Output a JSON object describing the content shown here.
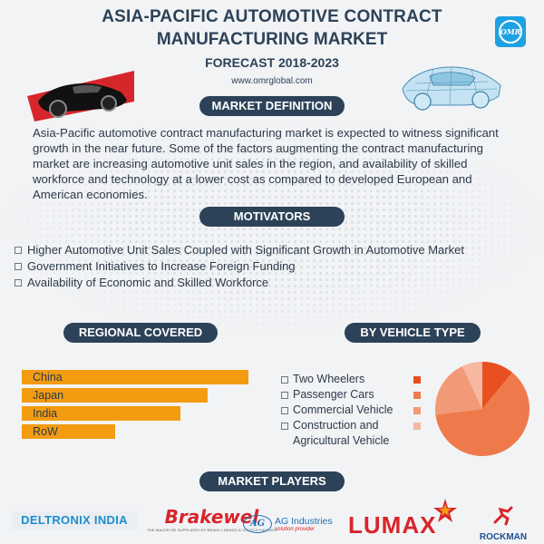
{
  "header": {
    "title_line1": "ASIA-PACIFIC AUTOMOTIVE CONTRACT",
    "title_line2": "MANUFACTURING MARKET",
    "subtitle": "FORECAST 2018-2023",
    "website": "www.omrglobal.com",
    "logo_text": "OMR"
  },
  "market_definition": {
    "heading": "MARKET DEFINITION",
    "text": "Asia-Pacific automotive contract manufacturing market is expected to witness significant growth in the near future. Some of the factors augmenting the contract manufacturing market are increasing automotive unit sales in the region, and availability of skilled workforce and technology at a lower cost as compared to developed European and American economies."
  },
  "motivators": {
    "heading": "MOTIVATORS",
    "items": [
      "Higher Automotive Unit Sales Coupled with Significant Growth in Automotive Market",
      "Government Initiatives to Increase Foreign Funding",
      "Availability of Economic and Skilled Workforce"
    ]
  },
  "regional": {
    "heading": "REGIONAL COVERED",
    "items": [
      {
        "label": "China",
        "value": 100
      },
      {
        "label": "Japan",
        "value": 82
      },
      {
        "label": "India",
        "value": 70
      },
      {
        "label": "RoW",
        "value": 41
      }
    ]
  },
  "vehicle_type": {
    "heading": "BY VEHICLE TYPE",
    "items": [
      {
        "label": "Two Wheelers",
        "color": "#e8501f",
        "share": 11
      },
      {
        "label": "Passenger Cars",
        "color": "#ee7a4c",
        "share": 62
      },
      {
        "label": "Commercial Vehicle",
        "color": "#f29a78",
        "share": 20
      },
      {
        "label": "Construction and Agricultural Vehicle",
        "color": "#f6b8a0",
        "share": 7
      }
    ]
  },
  "market_players": {
    "heading": "MARKET PLAYERS",
    "deltronix": "DELTRONIX INDIA",
    "brakewel": "Brakewel",
    "brakewel_tagline": "THE MAJOR OE SUPPLIERS OF BRAKE LININGS & CLUTCH FACINGS",
    "ag_mark": "AG",
    "ag_name": "AG Industries",
    "ag_tagline": "solution provider",
    "lumax": "LUMAX",
    "rockman": "ROCKMAN"
  }
}
